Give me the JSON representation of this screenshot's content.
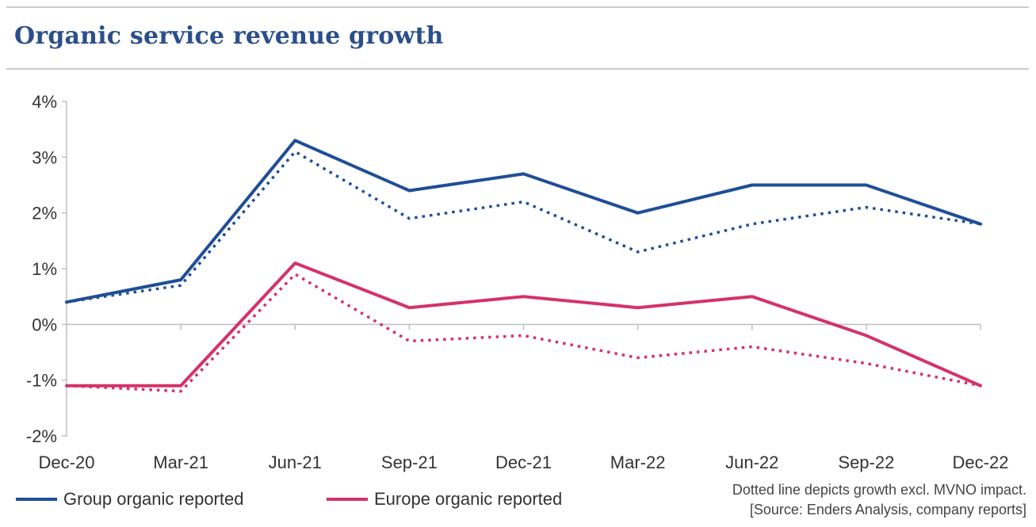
{
  "title": "Organic service revenue growth",
  "colors": {
    "group": "#1f4e96",
    "europe": "#d4326a",
    "title": "#2b4f8a",
    "axis": "#bfbfbf"
  },
  "legend": {
    "group_label": "Group organic reported",
    "europe_label": "Europe organic reported"
  },
  "note": {
    "line1": "Dotted line depicts growth excl. MVNO impact.",
    "line2": "[Source: Enders Analysis, company reports]"
  },
  "chart_data": {
    "type": "line",
    "title": "Organic service revenue growth",
    "categories": [
      "Dec-20",
      "Mar-21",
      "Jun-21",
      "Sep-21",
      "Dec-21",
      "Mar-22",
      "Jun-22",
      "Sep-22",
      "Dec-22"
    ],
    "ylim": [
      -2,
      4
    ],
    "yticks": [
      -2,
      -1,
      0,
      1,
      2,
      3,
      4
    ],
    "ytick_labels": [
      "-2%",
      "-1%",
      "0%",
      "1%",
      "2%",
      "3%",
      "4%"
    ],
    "grid": false,
    "legend_position": "bottom-left",
    "series": [
      {
        "name": "Group organic reported",
        "style": "solid",
        "color": "#1f4e96",
        "values": [
          0.4,
          0.8,
          3.3,
          2.4,
          2.7,
          2.0,
          2.5,
          2.5,
          1.8
        ]
      },
      {
        "style": "dotted",
        "color": "#1f4e96",
        "values": [
          0.4,
          0.7,
          3.1,
          1.9,
          2.2,
          1.3,
          1.8,
          2.1,
          1.8
        ]
      },
      {
        "name": "Europe organic reported",
        "style": "solid",
        "color": "#d4326a",
        "values": [
          -1.1,
          -1.1,
          1.1,
          0.3,
          0.5,
          0.3,
          0.5,
          -0.2,
          -1.1
        ]
      },
      {
        "style": "dotted",
        "color": "#d4326a",
        "values": [
          -1.1,
          -1.2,
          0.9,
          -0.3,
          -0.2,
          -0.6,
          -0.4,
          -0.7,
          -1.1
        ]
      }
    ]
  }
}
